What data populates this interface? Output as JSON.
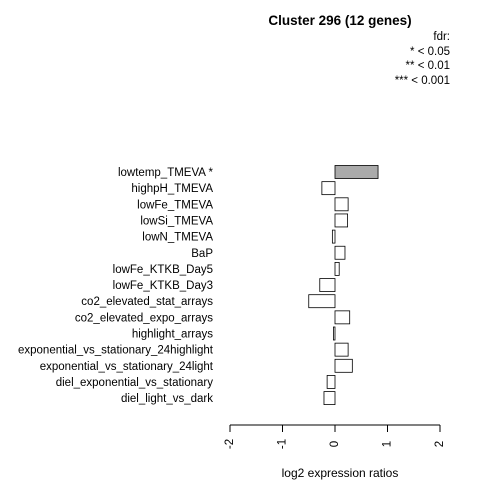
{
  "chart_data": {
    "type": "bar",
    "orientation": "horizontal",
    "title": "Cluster 296 (12 genes)",
    "xlabel": "log2 expression ratios",
    "ylabel": "",
    "xlim": [
      -2,
      2
    ],
    "xticks": [
      "-2",
      "-1",
      "0",
      "1",
      "2"
    ],
    "legend": {
      "title": "fdr:",
      "entries": [
        "* < 0.05",
        "** < 0.01",
        "*** < 0.001"
      ],
      "placement": "top-right"
    },
    "categories": [
      "lowtemp_TMEVA *",
      "highpH_TMEVA",
      "lowFe_TMEVA",
      "lowSi_TMEVA",
      "lowN_TMEVA",
      "BaP",
      "lowFe_KTKB_Day5",
      "lowFe_KTKB_Day3",
      "co2_elevated_stat_arrays",
      "co2_elevated_expo_arrays",
      "highlight_arrays",
      "exponential_vs_stationary_24highlight",
      "exponential_vs_stationary_24light",
      "diel_exponential_vs_stationary",
      "diel_light_vs_dark"
    ],
    "values": [
      0.82,
      -0.25,
      0.25,
      0.24,
      -0.05,
      0.19,
      0.08,
      -0.29,
      -0.5,
      0.28,
      -0.03,
      0.25,
      0.33,
      -0.15,
      -0.21
    ],
    "significant": [
      true,
      false,
      false,
      false,
      false,
      false,
      false,
      false,
      false,
      false,
      false,
      false,
      false,
      false,
      false
    ],
    "colors": {
      "significant": "#aaaaaa",
      "normal": "#ffffff",
      "stroke": "#000000"
    }
  }
}
